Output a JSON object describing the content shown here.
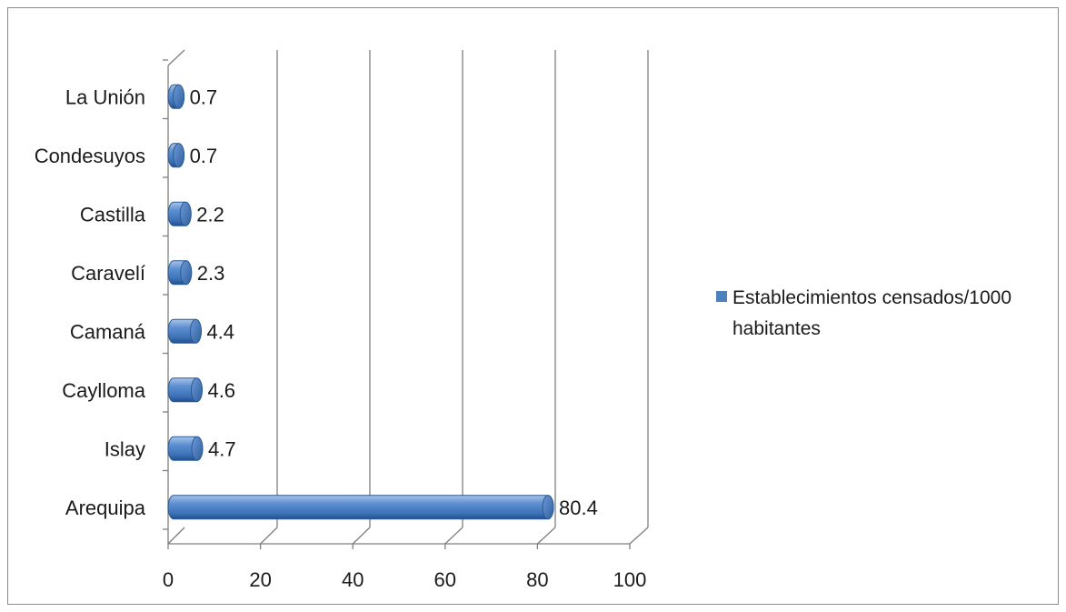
{
  "chart_data": {
    "type": "bar",
    "orientation": "horizontal",
    "style": "3d-cylinder",
    "categories": [
      "Arequipa",
      "Islay",
      "Caylloma",
      "Camaná",
      "Caravelí",
      "Castilla",
      "Condesuyos",
      "La Unión"
    ],
    "series": [
      {
        "name": "Establecimientos censados/1000 habitantes",
        "values": [
          80.4,
          4.7,
          4.6,
          4.4,
          2.3,
          2.2,
          0.7,
          0.7
        ],
        "value_labels": [
          "80.4",
          "4.7",
          "4.6",
          "4.4",
          "2.3",
          "2.2",
          "0.7",
          "0.7"
        ],
        "color": "#4f81bd"
      }
    ],
    "xlim": [
      0,
      100
    ],
    "x_ticks": [
      "0",
      "20",
      "40",
      "60",
      "80",
      "100"
    ],
    "legend": {
      "position": "right",
      "lines": [
        "Establecimientos censados/1000",
        "habitantes"
      ]
    },
    "grid": "vertical",
    "title": "",
    "xlabel": "",
    "ylabel": ""
  }
}
